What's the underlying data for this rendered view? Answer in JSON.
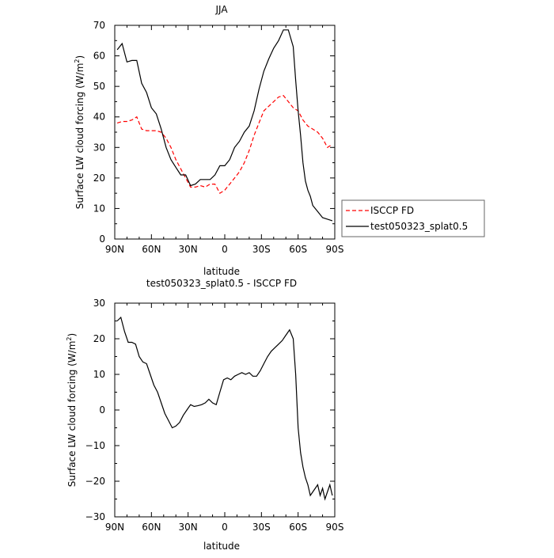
{
  "chart_data": [
    {
      "type": "line",
      "title": "JJA",
      "xlabel": "latitude",
      "ylabel_main": "Surface LW cloud forcing (W/m",
      "ylabel_sup": "2",
      "ylabel_end": ")",
      "xlim": [
        90,
        -90
      ],
      "ylim": [
        0,
        70
      ],
      "x_ticks": [
        90,
        60,
        30,
        0,
        -30,
        -60,
        -90
      ],
      "x_tick_labels": [
        "90N",
        "60N",
        "30N",
        "0",
        "30S",
        "60S",
        "90S"
      ],
      "y_ticks": [
        0,
        10,
        20,
        30,
        40,
        50,
        60,
        70
      ],
      "y_tick_labels": [
        "0",
        "10",
        "20",
        "30",
        "40",
        "50",
        "60",
        "70"
      ],
      "legend": "right",
      "series": [
        {
          "name": "ISCCP FD",
          "color": "#ff0000",
          "dash": true,
          "x": [
            88,
            84,
            80,
            76,
            72,
            68,
            64,
            60,
            56,
            52,
            48,
            44,
            40,
            36,
            32,
            28,
            24,
            20,
            16,
            12,
            8,
            4,
            0,
            -4,
            -8,
            -12,
            -16,
            -20,
            -24,
            -28,
            -32,
            -36,
            -40,
            -44,
            -48,
            -52,
            -56,
            -60,
            -64,
            -68,
            -72,
            -76,
            -80,
            -84,
            -88
          ],
          "y": [
            38,
            38.5,
            38.5,
            39,
            40,
            36,
            35.5,
            35.5,
            35.5,
            35,
            33,
            30,
            26,
            23,
            20,
            17,
            17,
            17.5,
            17,
            18,
            18,
            15,
            16,
            18,
            20,
            22,
            25,
            29,
            34,
            38,
            42,
            43.5,
            45,
            46.5,
            47,
            45,
            43,
            42,
            39,
            37,
            36,
            35,
            33,
            30,
            31
          ]
        },
        {
          "name": "test050323_splat0.5",
          "color": "#000000",
          "dash": false,
          "x": [
            88,
            84,
            80,
            76,
            72,
            68,
            64,
            60,
            56,
            52,
            48,
            44,
            40,
            36,
            32,
            28,
            24,
            20,
            16,
            12,
            8,
            4,
            0,
            -4,
            -8,
            -12,
            -16,
            -20,
            -24,
            -28,
            -32,
            -36,
            -40,
            -44,
            -48,
            -52,
            -56,
            -58,
            -60,
            -62,
            -64,
            -66,
            -68,
            -70,
            -72,
            -76,
            -80,
            -84,
            -88
          ],
          "y": [
            62,
            64,
            58,
            58.5,
            58.5,
            51,
            48,
            43,
            41,
            36,
            30,
            26,
            23.5,
            21,
            21,
            17.5,
            18,
            19.5,
            19.5,
            19.5,
            21,
            24,
            24,
            26,
            30,
            32,
            35,
            37,
            42,
            49,
            55,
            59,
            62.5,
            65,
            68.5,
            68.5,
            63,
            52,
            42,
            34,
            25,
            19,
            16,
            14,
            11,
            9,
            7,
            6.5,
            6
          ]
        }
      ]
    },
    {
      "type": "line",
      "title": "test050323_splat0.5 - ISCCP FD",
      "xlabel": "latitude",
      "ylabel_main": "Surface LW cloud forcing (W/m",
      "ylabel_sup": "2",
      "ylabel_end": ")",
      "xlim": [
        90,
        -90
      ],
      "ylim": [
        -30,
        30
      ],
      "x_ticks": [
        90,
        60,
        30,
        0,
        -30,
        -60,
        -90
      ],
      "x_tick_labels": [
        "90N",
        "60N",
        "30N",
        "0",
        "30S",
        "60S",
        "90S"
      ],
      "y_ticks": [
        -30,
        -20,
        -10,
        0,
        10,
        20,
        30
      ],
      "y_tick_labels": [
        "−30",
        "−20",
        "−10",
        "0",
        "10",
        "20",
        "30"
      ],
      "series": [
        {
          "color": "#000000",
          "dash": false,
          "x": [
            88,
            85,
            82,
            79,
            76,
            73,
            70,
            67,
            64,
            61,
            58,
            55,
            52,
            49,
            46,
            43,
            40,
            37,
            34,
            31,
            28,
            25,
            22,
            19,
            16,
            13,
            10,
            7,
            4,
            1,
            -2,
            -5,
            -8,
            -11,
            -14,
            -17,
            -20,
            -23,
            -26,
            -29,
            -32,
            -35,
            -38,
            -41,
            -44,
            -47,
            -50,
            -53,
            -56,
            -58,
            -60,
            -62,
            -64,
            -66,
            -68,
            -70,
            -72,
            -74,
            -76,
            -78,
            -80,
            -82,
            -84,
            -86,
            -88
          ],
          "y": [
            25,
            26,
            22,
            19,
            19,
            18.5,
            15,
            13.5,
            13,
            10,
            7,
            5,
            2,
            -1,
            -3,
            -5,
            -4.5,
            -3.5,
            -1.5,
            0,
            1.5,
            1,
            1.2,
            1.5,
            2,
            3,
            2,
            1.5,
            5,
            8.5,
            9,
            8.5,
            9.5,
            10,
            10.5,
            10,
            10.5,
            9.5,
            9.5,
            11,
            13,
            15,
            16.5,
            17.5,
            18.5,
            19.5,
            21,
            22.5,
            20,
            10,
            -5,
            -12,
            -16,
            -19,
            -21,
            -24,
            -23,
            -22,
            -21,
            -24,
            -22,
            -25,
            -23,
            -21,
            -24
          ]
        }
      ]
    }
  ]
}
